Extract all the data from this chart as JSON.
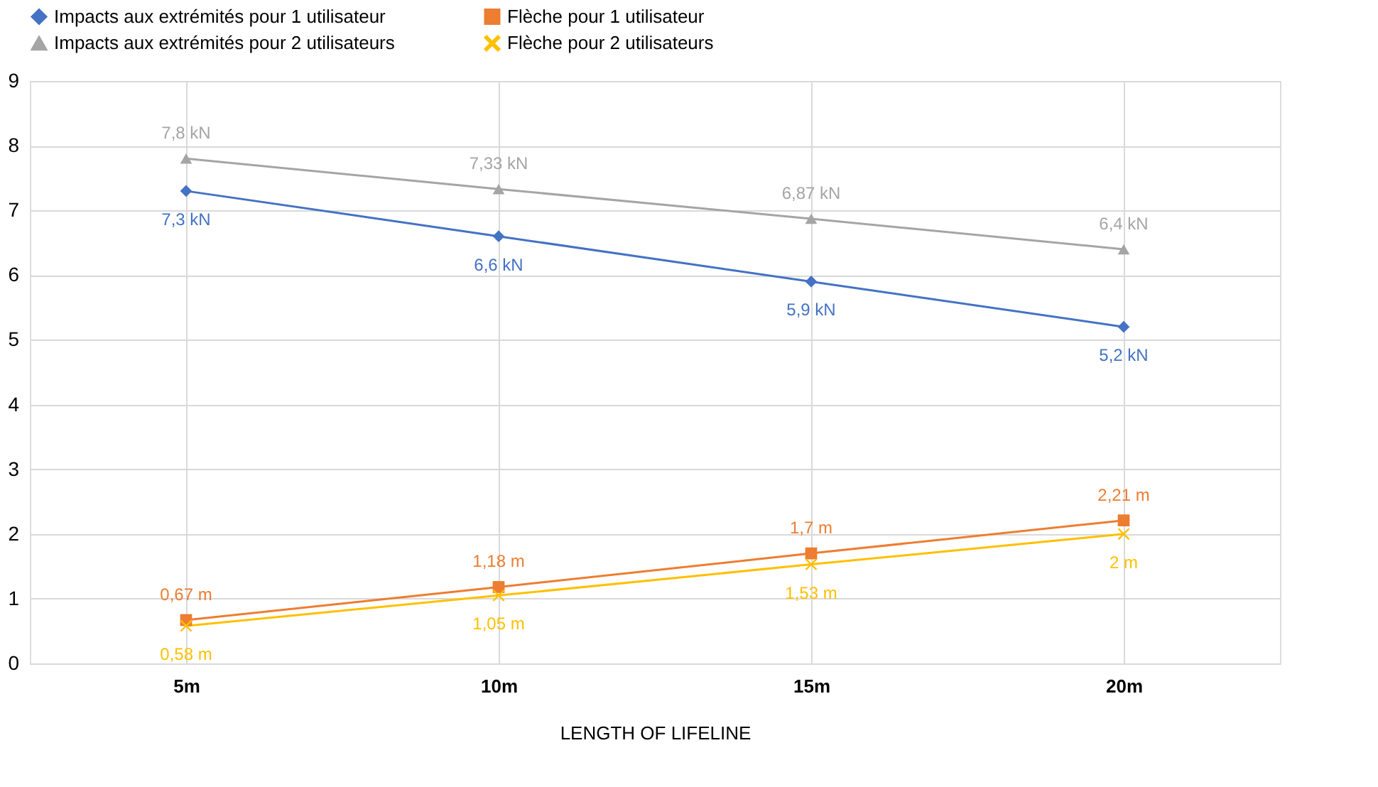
{
  "chart_data": {
    "type": "line",
    "xlabel": "LENGTH OF LIFELINE",
    "categories": [
      "5m",
      "10m",
      "15m",
      "20m"
    ],
    "series": [
      {
        "name": "Impacts aux extrémités pour 1 utilisateur",
        "color": "#4472c4",
        "marker": "diamond",
        "values": [
          7.3,
          6.6,
          5.9,
          5.2
        ],
        "value_labels": [
          "7,3 kN",
          "6,6 kN",
          "5,9 kN",
          "5,2 kN"
        ]
      },
      {
        "name": "Flèche pour 1 utilisateur",
        "color": "#ed7d31",
        "marker": "square",
        "values": [
          0.67,
          1.18,
          1.7,
          2.21
        ],
        "value_labels": [
          "0,67 m",
          "1,18 m",
          "1,7 m",
          "2,21 m"
        ]
      },
      {
        "name": "Impacts aux extrémités pour 2 utilisateurs",
        "color": "#a5a5a5",
        "marker": "triangle",
        "values": [
          7.8,
          7.33,
          6.87,
          6.4
        ],
        "value_labels": [
          "7,8 kN",
          "7,33 kN",
          "6,87 kN",
          "6,4 kN"
        ]
      },
      {
        "name": "Flèche pour 2 utilisateurs",
        "color": "#ffc000",
        "marker": "cross",
        "values": [
          0.58,
          1.05,
          1.53,
          2.0
        ],
        "value_labels": [
          "0,58 m",
          "1,05 m",
          "1,53 m",
          "2 m"
        ]
      }
    ],
    "ylim": [
      0,
      9
    ],
    "yticks": [
      0,
      1,
      2,
      3,
      4,
      5,
      6,
      7,
      8,
      9
    ],
    "grid": true,
    "legend": "top",
    "line_style": "solid"
  }
}
